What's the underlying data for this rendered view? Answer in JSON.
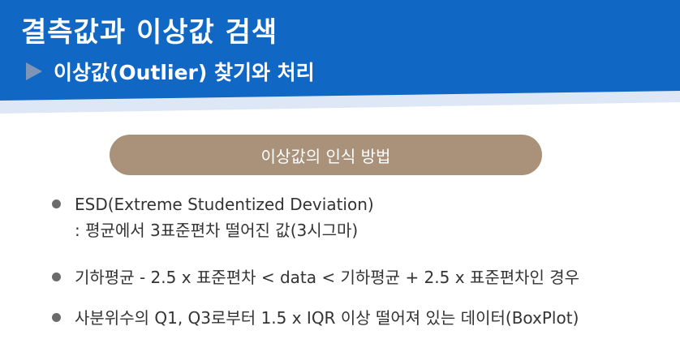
{
  "header": {
    "title": "결측값과 이상값 검색",
    "subtitle": "이상값(Outlier) 찾기와 처리"
  },
  "section": {
    "pill_label": "이상값의 인식 방법"
  },
  "bullets": [
    {
      "line1": "ESD(Extreme Studentized Deviation)",
      "line2": ": 평균에서 3표준편차 떨어진 값(3시그마)"
    },
    {
      "line1": "기하평균 - 2.5 x 표준편차 < data < 기하평균 + 2.5 x 표준편차인 경우"
    },
    {
      "line1": "사분위수의 Q1, Q3로부터 1.5 x IQR 이상 떨어져 있는 데이터(BoxPlot)"
    }
  ],
  "colors": {
    "header_blue": "#1167c4",
    "header_light_blue": "#dde7f5",
    "pill_brown": "#a9917a",
    "bullet_gray": "#6b6b6b",
    "text_dark": "#333333"
  }
}
